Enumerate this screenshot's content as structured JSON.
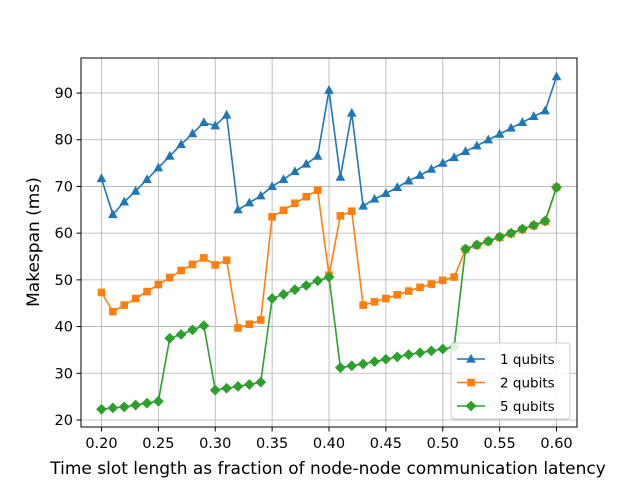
{
  "chart_data": {
    "type": "line",
    "xlabel": "Time slot length as fraction of node-node communication latency",
    "ylabel": "Makespan (ms)",
    "xlim": [
      0.182,
      0.618
    ],
    "ylim": [
      18.5,
      97.5
    ],
    "xticks": [
      0.2,
      0.25,
      0.3,
      0.35,
      0.4,
      0.45,
      0.5,
      0.55,
      0.6
    ],
    "xtick_labels": [
      "0.20",
      "0.25",
      "0.30",
      "0.35",
      "0.40",
      "0.45",
      "0.50",
      "0.55",
      "0.60"
    ],
    "yticks": [
      20,
      30,
      40,
      50,
      60,
      70,
      80,
      90
    ],
    "ytick_labels": [
      "20",
      "30",
      "40",
      "50",
      "60",
      "70",
      "80",
      "90"
    ],
    "grid": true,
    "legend_position": "lower-right",
    "x": [
      0.2,
      0.21,
      0.22,
      0.23,
      0.24,
      0.25,
      0.26,
      0.27,
      0.28,
      0.29,
      0.3,
      0.31,
      0.32,
      0.33,
      0.34,
      0.35,
      0.36,
      0.37,
      0.38,
      0.39,
      0.4,
      0.41,
      0.42,
      0.43,
      0.44,
      0.45,
      0.46,
      0.47,
      0.48,
      0.49,
      0.5,
      0.51,
      0.52,
      0.53,
      0.54,
      0.55,
      0.56,
      0.57,
      0.58,
      0.59,
      0.6
    ],
    "series": [
      {
        "name": "1 qubits",
        "color": "#1f77b4",
        "marker": "triangle",
        "values": [
          71.7,
          64.0,
          66.7,
          69.0,
          71.5,
          74.0,
          76.5,
          79.0,
          81.3,
          83.7,
          83.0,
          85.3,
          65.0,
          66.5,
          68.0,
          70.0,
          71.5,
          73.2,
          74.8,
          76.5,
          90.6,
          72.0,
          85.7,
          65.8,
          67.3,
          68.5,
          69.8,
          71.2,
          72.4,
          73.7,
          75.0,
          76.2,
          77.5,
          78.7,
          80.0,
          81.2,
          82.5,
          83.7,
          85.0,
          86.2,
          93.5
        ]
      },
      {
        "name": "2 qubits",
        "color": "#ff7f0e",
        "marker": "square",
        "values": [
          47.3,
          43.2,
          44.6,
          46.0,
          47.5,
          49.0,
          50.5,
          52.0,
          53.3,
          54.7,
          53.2,
          54.2,
          39.7,
          40.5,
          41.4,
          63.5,
          64.9,
          66.4,
          67.8,
          69.2,
          51.0,
          63.7,
          64.7,
          44.6,
          45.3,
          46.0,
          46.8,
          47.6,
          48.4,
          49.1,
          49.9,
          50.6,
          56.5,
          57.4,
          58.2,
          59.1,
          59.9,
          60.8,
          61.6,
          62.5,
          69.8
        ]
      },
      {
        "name": "5 qubits",
        "color": "#2ca02c",
        "marker": "diamond",
        "values": [
          22.3,
          22.6,
          22.8,
          23.2,
          23.6,
          24.0,
          37.5,
          38.3,
          39.3,
          40.2,
          26.4,
          26.8,
          27.2,
          27.6,
          28.1,
          46.0,
          46.9,
          47.9,
          48.8,
          49.8,
          50.6,
          31.2,
          31.6,
          32.0,
          32.5,
          33.0,
          33.5,
          34.0,
          34.4,
          34.8,
          35.2,
          35.6,
          56.6,
          57.5,
          58.3,
          59.2,
          60.0,
          60.9,
          61.7,
          62.6,
          69.8
        ]
      }
    ]
  }
}
